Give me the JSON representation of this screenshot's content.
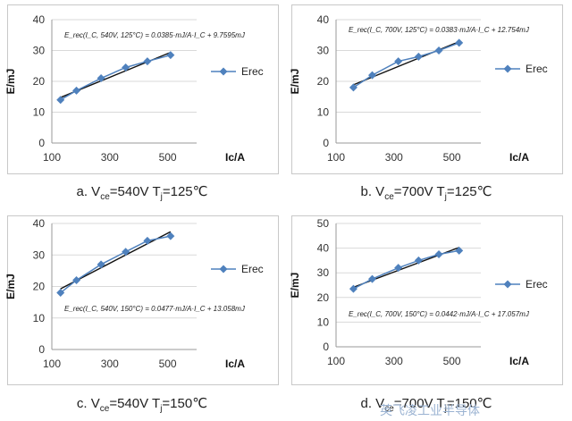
{
  "watermark": "英飞凌工业半导体",
  "chart_data": [
    {
      "type": "scatter",
      "caption": {
        "prefix": "a. V",
        "sub": "ce",
        "rest": "=540V T",
        "sub2": "j",
        "rest2": "=125℃"
      },
      "xlabel": "Ic/A",
      "ylabel": "E/mJ",
      "xlim": [
        100,
        600
      ],
      "ylim": [
        0,
        40
      ],
      "xticks": [
        "100",
        "300",
        "500"
      ],
      "yticks": [
        "0",
        "10",
        "20",
        "30",
        "40"
      ],
      "legend": "Erec",
      "equation": "E_rec(I_C, 540V, 125°C) = 0.0385·mJ/A·I_C + 9.7595mJ",
      "series": [
        {
          "name": "Erec",
          "x": [
            130,
            185,
            270,
            355,
            430,
            510
          ],
          "y": [
            14,
            17,
            21,
            24.5,
            26.5,
            28.5
          ]
        }
      ],
      "fit": {
        "slope": 0.0385,
        "intercept": 9.7595
      }
    },
    {
      "type": "scatter",
      "caption": {
        "prefix": "b. V",
        "sub": "ce",
        "rest": "=700V T",
        "sub2": "j",
        "rest2": "=125℃"
      },
      "xlabel": "Ic/A",
      "ylabel": "E/mJ",
      "xlim": [
        100,
        600
      ],
      "ylim": [
        0,
        40
      ],
      "xticks": [
        "100",
        "300",
        "500"
      ],
      "yticks": [
        "0",
        "10",
        "20",
        "30",
        "40"
      ],
      "legend": "Erec",
      "equation": "E_rec(I_C, 700V, 125°C) = 0.0383·mJ/A·I_C + 12.754mJ",
      "series": [
        {
          "name": "Erec",
          "x": [
            160,
            225,
            315,
            385,
            455,
            525
          ],
          "y": [
            18,
            22,
            26.5,
            28,
            30,
            32.5
          ]
        }
      ],
      "fit": {
        "slope": 0.0383,
        "intercept": 12.754
      }
    },
    {
      "type": "scatter",
      "caption": {
        "prefix": "c. V",
        "sub": "ce",
        "rest": "=540V T",
        "sub2": "j",
        "rest2": "=150℃"
      },
      "xlabel": "Ic/A",
      "ylabel": "E/mJ",
      "xlim": [
        100,
        600
      ],
      "ylim": [
        0,
        40
      ],
      "xticks": [
        "100",
        "300",
        "500"
      ],
      "yticks": [
        "0",
        "10",
        "20",
        "30",
        "40"
      ],
      "legend": "Erec",
      "equation": "E_rec(I_C, 540V, 150°C) = 0.0477·mJ/A·I_C + 13.058mJ",
      "series": [
        {
          "name": "Erec",
          "x": [
            130,
            185,
            270,
            355,
            430,
            510
          ],
          "y": [
            18,
            22,
            27,
            31,
            34.5,
            36
          ]
        }
      ],
      "fit": {
        "slope": 0.0477,
        "intercept": 13.058
      }
    },
    {
      "type": "scatter",
      "caption": {
        "prefix": "d. V",
        "sub": "ce",
        "rest": "=700V T",
        "sub2": "j",
        "rest2": "=150℃"
      },
      "xlabel": "Ic/A",
      "ylabel": "E/mJ",
      "xlim": [
        100,
        600
      ],
      "ylim": [
        0,
        50
      ],
      "xticks": [
        "100",
        "300",
        "500"
      ],
      "yticks": [
        "0",
        "10",
        "20",
        "30",
        "40",
        "50"
      ],
      "legend": "Erec",
      "equation": "E_rec(I_C, 700V, 150°C) = 0.0442·mJ/A·I_C + 17.057mJ",
      "series": [
        {
          "name": "Erec",
          "x": [
            160,
            225,
            315,
            385,
            455,
            525
          ],
          "y": [
            23.5,
            27.5,
            32,
            35,
            37.5,
            39
          ]
        }
      ],
      "fit": {
        "slope": 0.0442,
        "intercept": 17.057
      }
    }
  ]
}
